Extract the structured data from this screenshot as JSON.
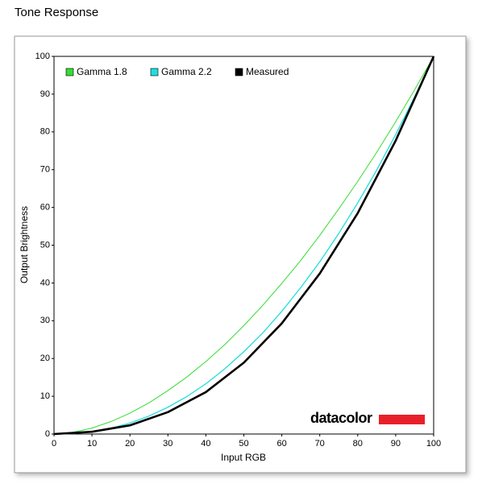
{
  "chart_data": {
    "type": "line",
    "title": "Tone Response",
    "x_label": "Input RGB",
    "y_label": "Output Brightness",
    "watermark": "datacolor",
    "xlim": [
      0,
      100
    ],
    "ylim": [
      0,
      100
    ],
    "xticks": [
      0,
      10,
      20,
      30,
      40,
      50,
      60,
      70,
      80,
      90,
      100
    ],
    "yticks": [
      0,
      10,
      20,
      30,
      40,
      50,
      60,
      70,
      80,
      90,
      100
    ],
    "grid": false,
    "series": [
      {
        "name": "Gamma 1.8",
        "color": "#33dd33",
        "width": 1,
        "x": [
          0,
          5,
          10,
          15,
          20,
          25,
          30,
          35,
          40,
          45,
          50,
          55,
          60,
          65,
          70,
          75,
          80,
          85,
          90,
          95,
          100
        ],
        "values": [
          0,
          0.45,
          1.58,
          3.3,
          5.53,
          8.25,
          11.5,
          15.1,
          19.2,
          23.7,
          28.7,
          34.1,
          39.9,
          46.0,
          52.6,
          59.6,
          66.9,
          74.6,
          82.7,
          91.2,
          100
        ]
      },
      {
        "name": "Gamma 2.2",
        "color": "#22dddd",
        "width": 1.3,
        "x": [
          0,
          5,
          10,
          15,
          20,
          25,
          30,
          35,
          40,
          45,
          50,
          55,
          60,
          65,
          70,
          75,
          80,
          85,
          90,
          95,
          100
        ],
        "values": [
          0,
          0.14,
          0.63,
          1.54,
          2.9,
          4.75,
          7.09,
          9.94,
          13.3,
          17.3,
          21.8,
          26.8,
          32.5,
          38.8,
          45.6,
          53.1,
          61.2,
          69.9,
          79.3,
          89.3,
          100
        ]
      },
      {
        "name": "Measured",
        "color": "#000000",
        "width": 2.6,
        "x": [
          0,
          10,
          20,
          30,
          40,
          50,
          60,
          70,
          80,
          90,
          100
        ],
        "values": [
          0,
          0.6,
          2.3,
          5.8,
          11.1,
          18.9,
          29.3,
          42.5,
          58.5,
          77.7,
          100
        ]
      }
    ]
  }
}
